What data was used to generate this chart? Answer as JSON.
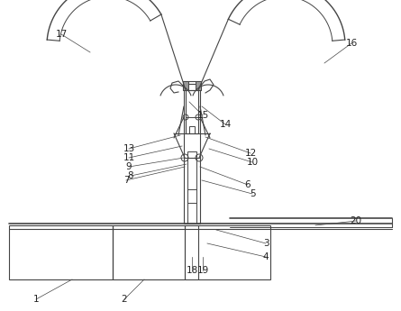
{
  "bg_color": "#ffffff",
  "line_color": "#444444",
  "label_color": "#222222",
  "fig_width": 4.45,
  "fig_height": 3.45,
  "dpi": 100
}
